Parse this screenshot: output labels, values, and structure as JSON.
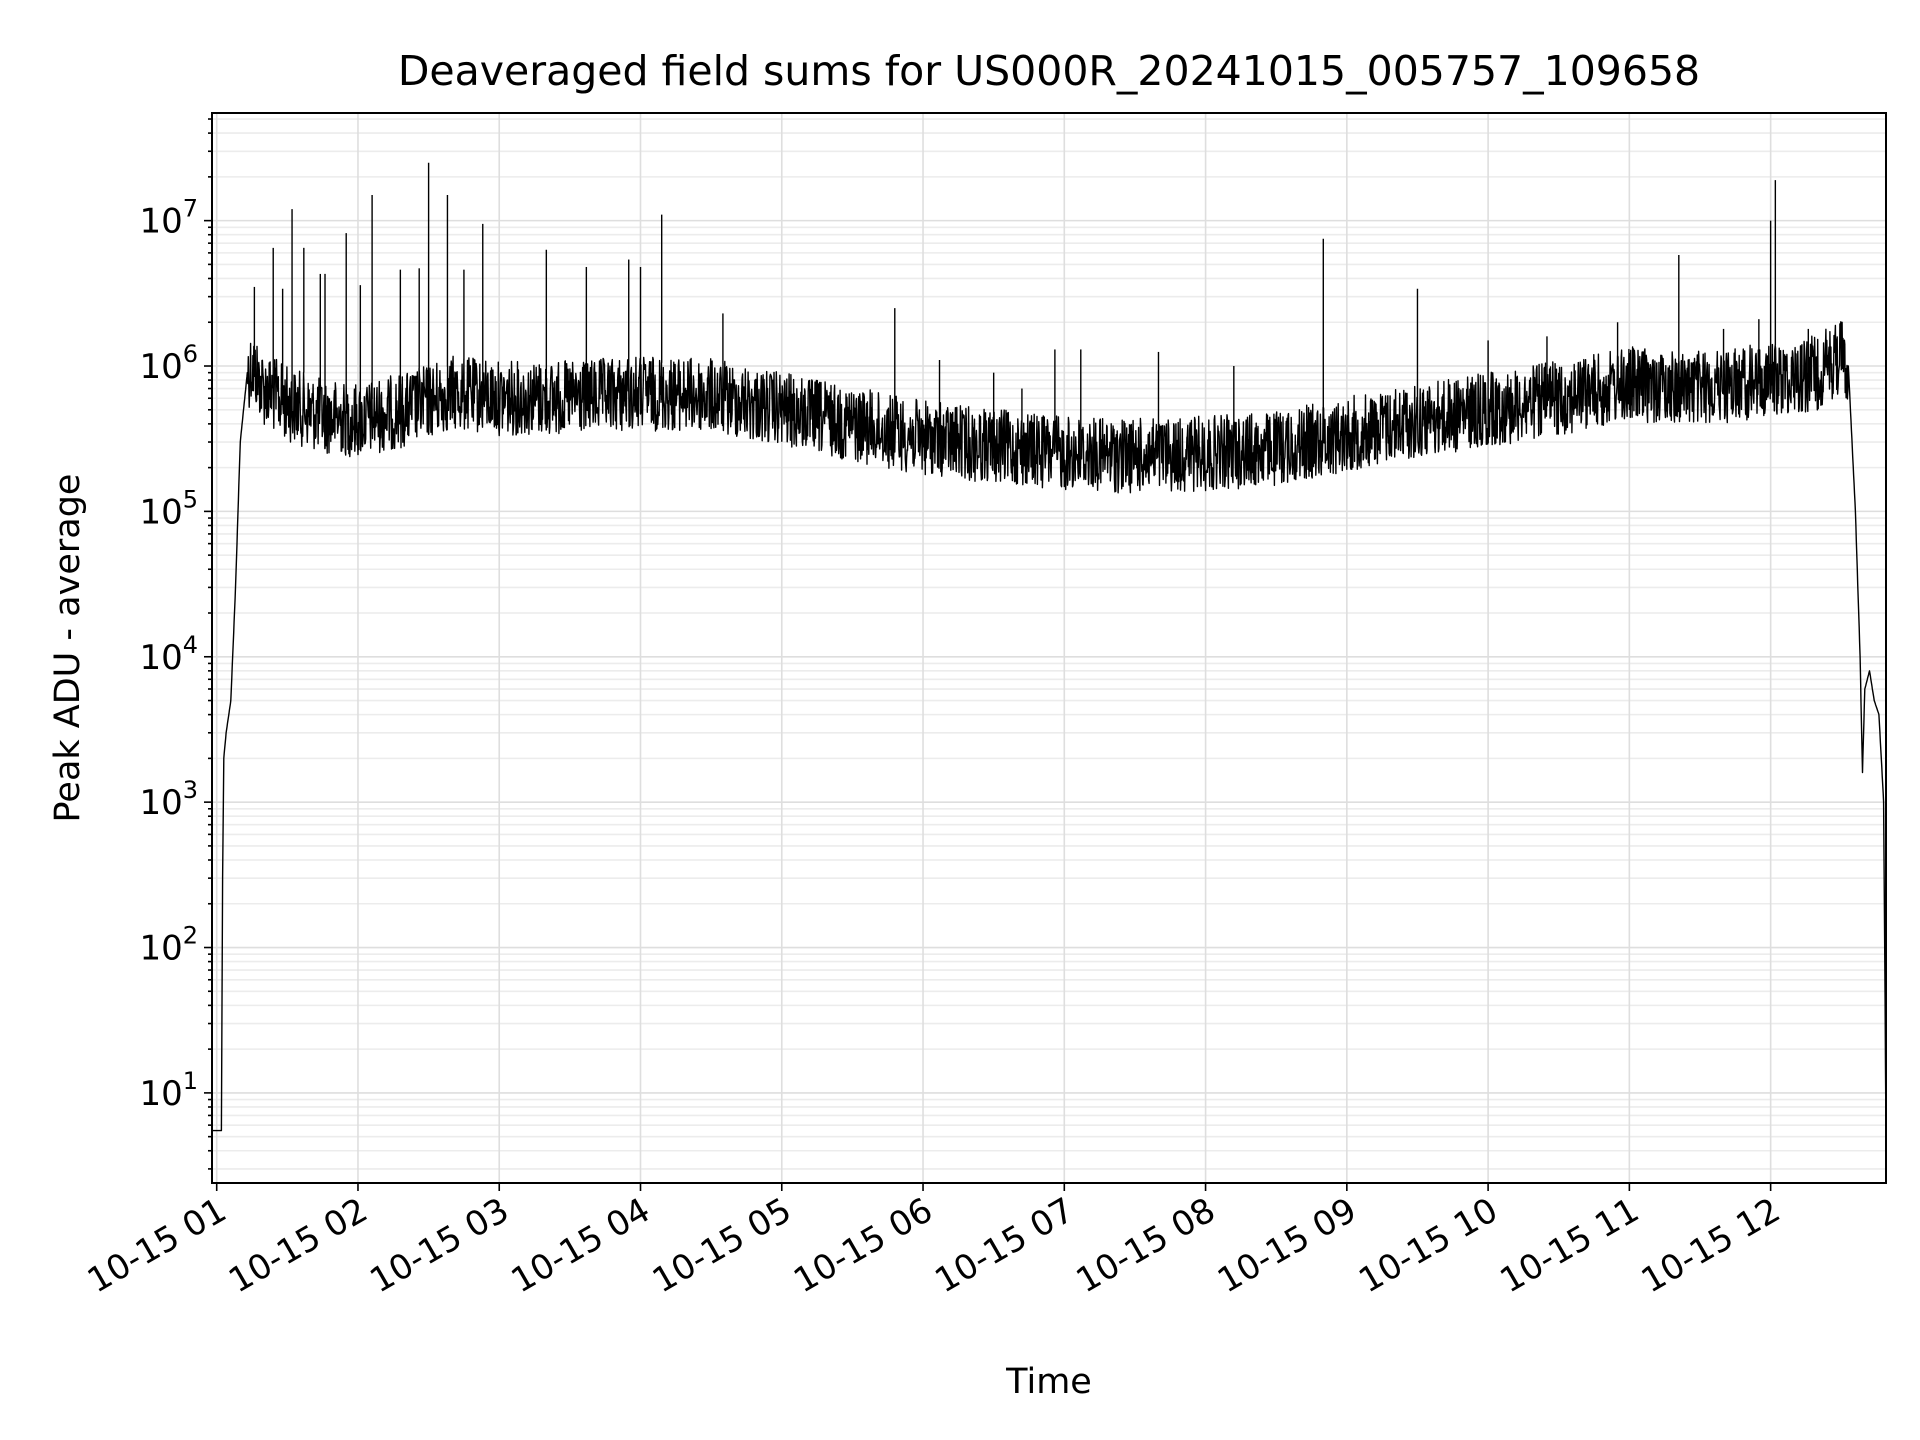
{
  "chart_data": {
    "type": "line",
    "title": "Deaveraged field sums for US000R_20241015_005757_109658",
    "xlabel": "Time",
    "ylabel": "Peak ADU - average",
    "yscale": "log",
    "ylim": [
      2.4,
      55000000
    ],
    "xlim": [
      "2024-10-15T00:58:00",
      "2024-10-15T12:49:00"
    ],
    "grid": true,
    "legend": "none",
    "line_color": "#000000",
    "x_ticks": [
      {
        "t": "2024-10-15T01:00:00",
        "label": "10-15 01"
      },
      {
        "t": "2024-10-15T02:00:00",
        "label": "10-15 02"
      },
      {
        "t": "2024-10-15T03:00:00",
        "label": "10-15 03"
      },
      {
        "t": "2024-10-15T04:00:00",
        "label": "10-15 04"
      },
      {
        "t": "2024-10-15T05:00:00",
        "label": "10-15 05"
      },
      {
        "t": "2024-10-15T06:00:00",
        "label": "10-15 06"
      },
      {
        "t": "2024-10-15T07:00:00",
        "label": "10-15 07"
      },
      {
        "t": "2024-10-15T08:00:00",
        "label": "10-15 08"
      },
      {
        "t": "2024-10-15T09:00:00",
        "label": "10-15 09"
      },
      {
        "t": "2024-10-15T10:00:00",
        "label": "10-15 10"
      },
      {
        "t": "2024-10-15T11:00:00",
        "label": "10-15 11"
      },
      {
        "t": "2024-10-15T12:00:00",
        "label": "10-15 12"
      }
    ],
    "y_ticks": [
      {
        "v": 10,
        "base": "10",
        "exp": "1"
      },
      {
        "v": 100,
        "base": "10",
        "exp": "2"
      },
      {
        "v": 1000,
        "base": "10",
        "exp": "3"
      },
      {
        "v": 10000,
        "base": "10",
        "exp": "4"
      },
      {
        "v": 100000,
        "base": "10",
        "exp": "5"
      },
      {
        "v": 1000000,
        "base": "10",
        "exp": "6"
      },
      {
        "v": 10000000,
        "base": "10",
        "exp": "7"
      }
    ],
    "series": [
      {
        "points": [
          [
            "2024-10-15T00:58:00",
            5.5
          ],
          [
            "2024-10-15T01:02:00",
            5.5
          ],
          [
            "2024-10-15T01:02:30",
            300
          ],
          [
            "2024-10-15T01:03:00",
            2000
          ],
          [
            "2024-10-15T01:04:00",
            3000
          ],
          [
            "2024-10-15T01:06:00",
            5000
          ],
          [
            "2024-10-15T01:08:00",
            30000
          ],
          [
            "2024-10-15T01:10:00",
            300000
          ],
          [
            "2024-10-15T01:13:00",
            900000
          ],
          [
            "2024-10-15T01:15:00",
            1000000
          ],
          [
            "2024-10-15T01:20:00",
            700000
          ],
          [
            "2024-10-15T01:30:00",
            550000
          ],
          [
            "2024-10-15T01:45:00",
            450000
          ],
          [
            "2024-10-15T02:00:00",
            420000
          ],
          [
            "2024-10-15T02:20:00",
            500000
          ],
          [
            "2024-10-15T02:40:00",
            650000
          ],
          [
            "2024-10-15T03:00:00",
            600000
          ],
          [
            "2024-10-15T03:30:00",
            600000
          ],
          [
            "2024-10-15T04:00:00",
            650000
          ],
          [
            "2024-10-15T04:30:00",
            620000
          ],
          [
            "2024-10-15T05:00:00",
            500000
          ],
          [
            "2024-10-15T05:30:00",
            400000
          ],
          [
            "2024-10-15T06:00:00",
            320000
          ],
          [
            "2024-10-15T06:30:00",
            280000
          ],
          [
            "2024-10-15T07:00:00",
            250000
          ],
          [
            "2024-10-15T07:30:00",
            240000
          ],
          [
            "2024-10-15T08:00:00",
            250000
          ],
          [
            "2024-10-15T08:30:00",
            270000
          ],
          [
            "2024-10-15T09:00:00",
            340000
          ],
          [
            "2024-10-15T09:30:00",
            420000
          ],
          [
            "2024-10-15T10:00:00",
            500000
          ],
          [
            "2024-10-15T10:30:00",
            600000
          ],
          [
            "2024-10-15T11:00:00",
            750000
          ],
          [
            "2024-10-15T11:30:00",
            700000
          ],
          [
            "2024-10-15T12:00:00",
            800000
          ],
          [
            "2024-10-15T12:20:00",
            900000
          ],
          [
            "2024-10-15T12:30:00",
            1200000
          ],
          [
            "2024-10-15T12:33:00",
            1000000
          ],
          [
            "2024-10-15T12:36:00",
            100000
          ],
          [
            "2024-10-15T12:38:00",
            10000
          ],
          [
            "2024-10-15T12:39:00",
            1600
          ],
          [
            "2024-10-15T12:40:00",
            6000
          ],
          [
            "2024-10-15T12:42:00",
            8000
          ],
          [
            "2024-10-15T12:44:00",
            5000
          ],
          [
            "2024-10-15T12:46:00",
            4000
          ],
          [
            "2024-10-15T12:48:00",
            1000
          ],
          [
            "2024-10-15T12:49:00",
            5
          ]
        ],
        "spikes": [
          [
            "2024-10-15T01:16:00",
            3500000
          ],
          [
            "2024-10-15T01:24:00",
            6500000
          ],
          [
            "2024-10-15T01:28:00",
            3400000
          ],
          [
            "2024-10-15T01:32:00",
            12000000
          ],
          [
            "2024-10-15T01:37:00",
            6500000
          ],
          [
            "2024-10-15T01:44:00",
            4300000
          ],
          [
            "2024-10-15T01:46:00",
            4300000
          ],
          [
            "2024-10-15T01:55:00",
            8200000
          ],
          [
            "2024-10-15T02:01:00",
            3600000
          ],
          [
            "2024-10-15T02:06:00",
            15000000
          ],
          [
            "2024-10-15T02:18:00",
            4600000
          ],
          [
            "2024-10-15T02:26:00",
            4700000
          ],
          [
            "2024-10-15T02:30:00",
            25000000
          ],
          [
            "2024-10-15T02:38:00",
            15000000
          ],
          [
            "2024-10-15T02:45:00",
            4600000
          ],
          [
            "2024-10-15T02:53:00",
            9500000
          ],
          [
            "2024-10-15T03:20:00",
            6300000
          ],
          [
            "2024-10-15T03:37:00",
            4800000
          ],
          [
            "2024-10-15T03:55:00",
            5400000
          ],
          [
            "2024-10-15T04:00:00",
            4800000
          ],
          [
            "2024-10-15T04:09:00",
            11000000
          ],
          [
            "2024-10-15T04:35:00",
            2300000
          ],
          [
            "2024-10-15T05:48:00",
            2500000
          ],
          [
            "2024-10-15T06:07:00",
            1100000
          ],
          [
            "2024-10-15T06:30:00",
            900000
          ],
          [
            "2024-10-15T06:42:00",
            700000
          ],
          [
            "2024-10-15T06:56:00",
            1300000
          ],
          [
            "2024-10-15T07:07:00",
            1300000
          ],
          [
            "2024-10-15T07:40:00",
            1250000
          ],
          [
            "2024-10-15T08:12:00",
            1000000
          ],
          [
            "2024-10-15T08:50:00",
            7500000
          ],
          [
            "2024-10-15T09:30:00",
            3400000
          ],
          [
            "2024-10-15T10:00:00",
            1500000
          ],
          [
            "2024-10-15T10:25:00",
            1600000
          ],
          [
            "2024-10-15T10:55:00",
            2000000
          ],
          [
            "2024-10-15T11:21:00",
            5800000
          ],
          [
            "2024-10-15T11:40:00",
            1800000
          ],
          [
            "2024-10-15T11:55:00",
            2100000
          ],
          [
            "2024-10-15T12:00:00",
            10000000
          ],
          [
            "2024-10-15T12:02:00",
            19000000
          ],
          [
            "2024-10-15T12:16:00",
            1800000
          ]
        ]
      }
    ]
  }
}
